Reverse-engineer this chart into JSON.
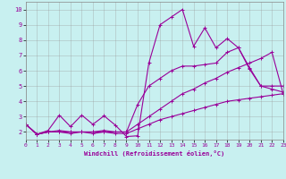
{
  "xlabel": "Windchill (Refroidissement éolien,°C)",
  "xlim": [
    0,
    23
  ],
  "ylim": [
    1.5,
    10.5
  ],
  "yticks": [
    2,
    3,
    4,
    5,
    6,
    7,
    8,
    9,
    10
  ],
  "xticks": [
    0,
    1,
    2,
    3,
    4,
    5,
    6,
    7,
    8,
    9,
    10,
    11,
    12,
    13,
    14,
    15,
    16,
    17,
    18,
    19,
    20,
    21,
    22,
    23
  ],
  "background_color": "#c8f0f0",
  "grid_color": "#999999",
  "line_color": "#990099",
  "lines": [
    {
      "x": [
        0,
        1,
        2,
        3,
        4,
        5,
        6,
        7,
        8,
        9,
        10,
        11,
        12,
        13,
        14,
        15,
        16,
        17,
        18,
        19,
        20,
        21,
        22,
        23
      ],
      "y": [
        2.5,
        1.85,
        2.1,
        3.1,
        2.35,
        3.1,
        2.5,
        3.05,
        2.45,
        1.7,
        1.75,
        6.5,
        9.0,
        9.5,
        10.0,
        7.6,
        8.8,
        7.5,
        8.1,
        7.5,
        6.1,
        5.0,
        5.0,
        5.0
      ]
    },
    {
      "x": [
        0,
        1,
        2,
        3,
        4,
        5,
        6,
        7,
        8,
        9,
        10,
        11,
        12,
        13,
        14,
        15,
        16,
        17,
        18,
        19,
        20,
        21,
        22,
        23
      ],
      "y": [
        2.5,
        1.85,
        2.0,
        2.1,
        2.0,
        2.0,
        2.0,
        2.1,
        2.0,
        2.0,
        3.8,
        5.0,
        5.5,
        6.0,
        6.3,
        6.3,
        6.4,
        6.5,
        7.2,
        7.5,
        6.2,
        5.0,
        4.8,
        4.6
      ]
    },
    {
      "x": [
        0,
        1,
        2,
        3,
        4,
        5,
        6,
        7,
        8,
        9,
        10,
        11,
        12,
        13,
        14,
        15,
        16,
        17,
        18,
        19,
        20,
        21,
        22,
        23
      ],
      "y": [
        2.5,
        1.85,
        2.0,
        2.0,
        2.0,
        2.0,
        2.0,
        2.0,
        2.0,
        2.0,
        2.5,
        3.0,
        3.5,
        4.0,
        4.5,
        4.8,
        5.2,
        5.5,
        5.9,
        6.2,
        6.5,
        6.8,
        7.2,
        4.5
      ]
    },
    {
      "x": [
        0,
        1,
        2,
        3,
        4,
        5,
        6,
        7,
        8,
        9,
        10,
        11,
        12,
        13,
        14,
        15,
        16,
        17,
        18,
        19,
        20,
        21,
        22,
        23
      ],
      "y": [
        2.5,
        1.85,
        2.0,
        2.0,
        1.9,
        2.0,
        1.9,
        2.0,
        1.9,
        1.9,
        2.2,
        2.5,
        2.8,
        3.0,
        3.2,
        3.4,
        3.6,
        3.8,
        4.0,
        4.1,
        4.2,
        4.3,
        4.4,
        4.5
      ]
    }
  ],
  "marker": "+",
  "markersize": 3,
  "linewidth": 0.8
}
